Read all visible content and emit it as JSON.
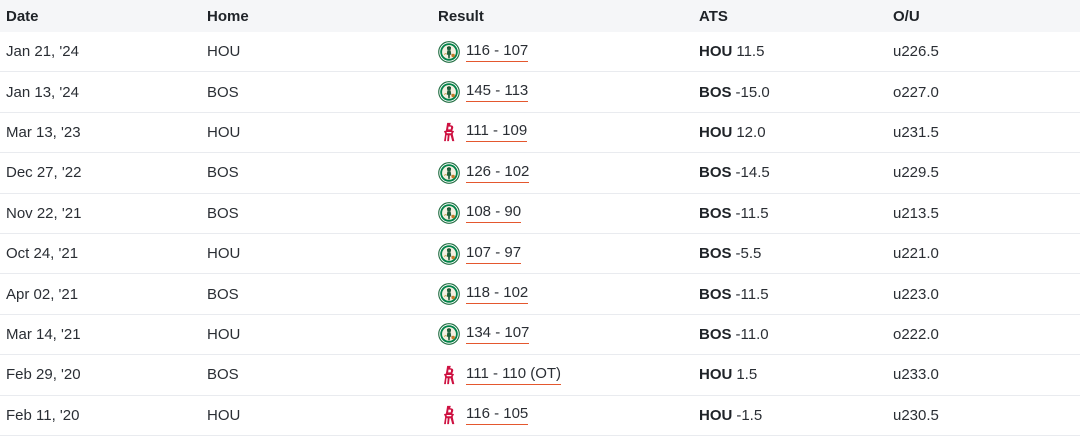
{
  "headers": {
    "date": "Date",
    "home": "Home",
    "result": "Result",
    "ats": "ATS",
    "ou": "O/U"
  },
  "icons": {
    "celtics": "celtics-logo-icon",
    "rockets": "rockets-logo-icon"
  },
  "colors": {
    "celtics_green": "#008348",
    "rockets_red": "#ce1141",
    "underline_orange": "#e4572e"
  },
  "rows": [
    {
      "date": "Jan 21, '24",
      "home": "HOU",
      "winner": "celtics",
      "score": "116 - 107",
      "ats_team": "HOU",
      "ats_line": "11.5",
      "ou": "u226.5"
    },
    {
      "date": "Jan 13, '24",
      "home": "BOS",
      "winner": "celtics",
      "score": "145 - 113",
      "ats_team": "BOS",
      "ats_line": "-15.0",
      "ou": "o227.0"
    },
    {
      "date": "Mar 13, '23",
      "home": "HOU",
      "winner": "rockets",
      "score": "111 - 109",
      "ats_team": "HOU",
      "ats_line": "12.0",
      "ou": "u231.5"
    },
    {
      "date": "Dec 27, '22",
      "home": "BOS",
      "winner": "celtics",
      "score": "126 - 102",
      "ats_team": "BOS",
      "ats_line": "-14.5",
      "ou": "u229.5"
    },
    {
      "date": "Nov 22, '21",
      "home": "BOS",
      "winner": "celtics",
      "score": "108 - 90",
      "ats_team": "BOS",
      "ats_line": "-11.5",
      "ou": "u213.5"
    },
    {
      "date": "Oct 24, '21",
      "home": "HOU",
      "winner": "celtics",
      "score": "107 - 97",
      "ats_team": "BOS",
      "ats_line": "-5.5",
      "ou": "u221.0"
    },
    {
      "date": "Apr 02, '21",
      "home": "BOS",
      "winner": "celtics",
      "score": "118 - 102",
      "ats_team": "BOS",
      "ats_line": "-11.5",
      "ou": "u223.0"
    },
    {
      "date": "Mar 14, '21",
      "home": "HOU",
      "winner": "celtics",
      "score": "134 - 107",
      "ats_team": "BOS",
      "ats_line": "-11.0",
      "ou": "o222.0"
    },
    {
      "date": "Feb 29, '20",
      "home": "BOS",
      "winner": "rockets",
      "score": "111 - 110 (OT)",
      "ats_team": "HOU",
      "ats_line": "1.5",
      "ou": "u233.0"
    },
    {
      "date": "Feb 11, '20",
      "home": "HOU",
      "winner": "rockets",
      "score": "116 - 105",
      "ats_team": "HOU",
      "ats_line": "-1.5",
      "ou": "u230.5"
    }
  ]
}
